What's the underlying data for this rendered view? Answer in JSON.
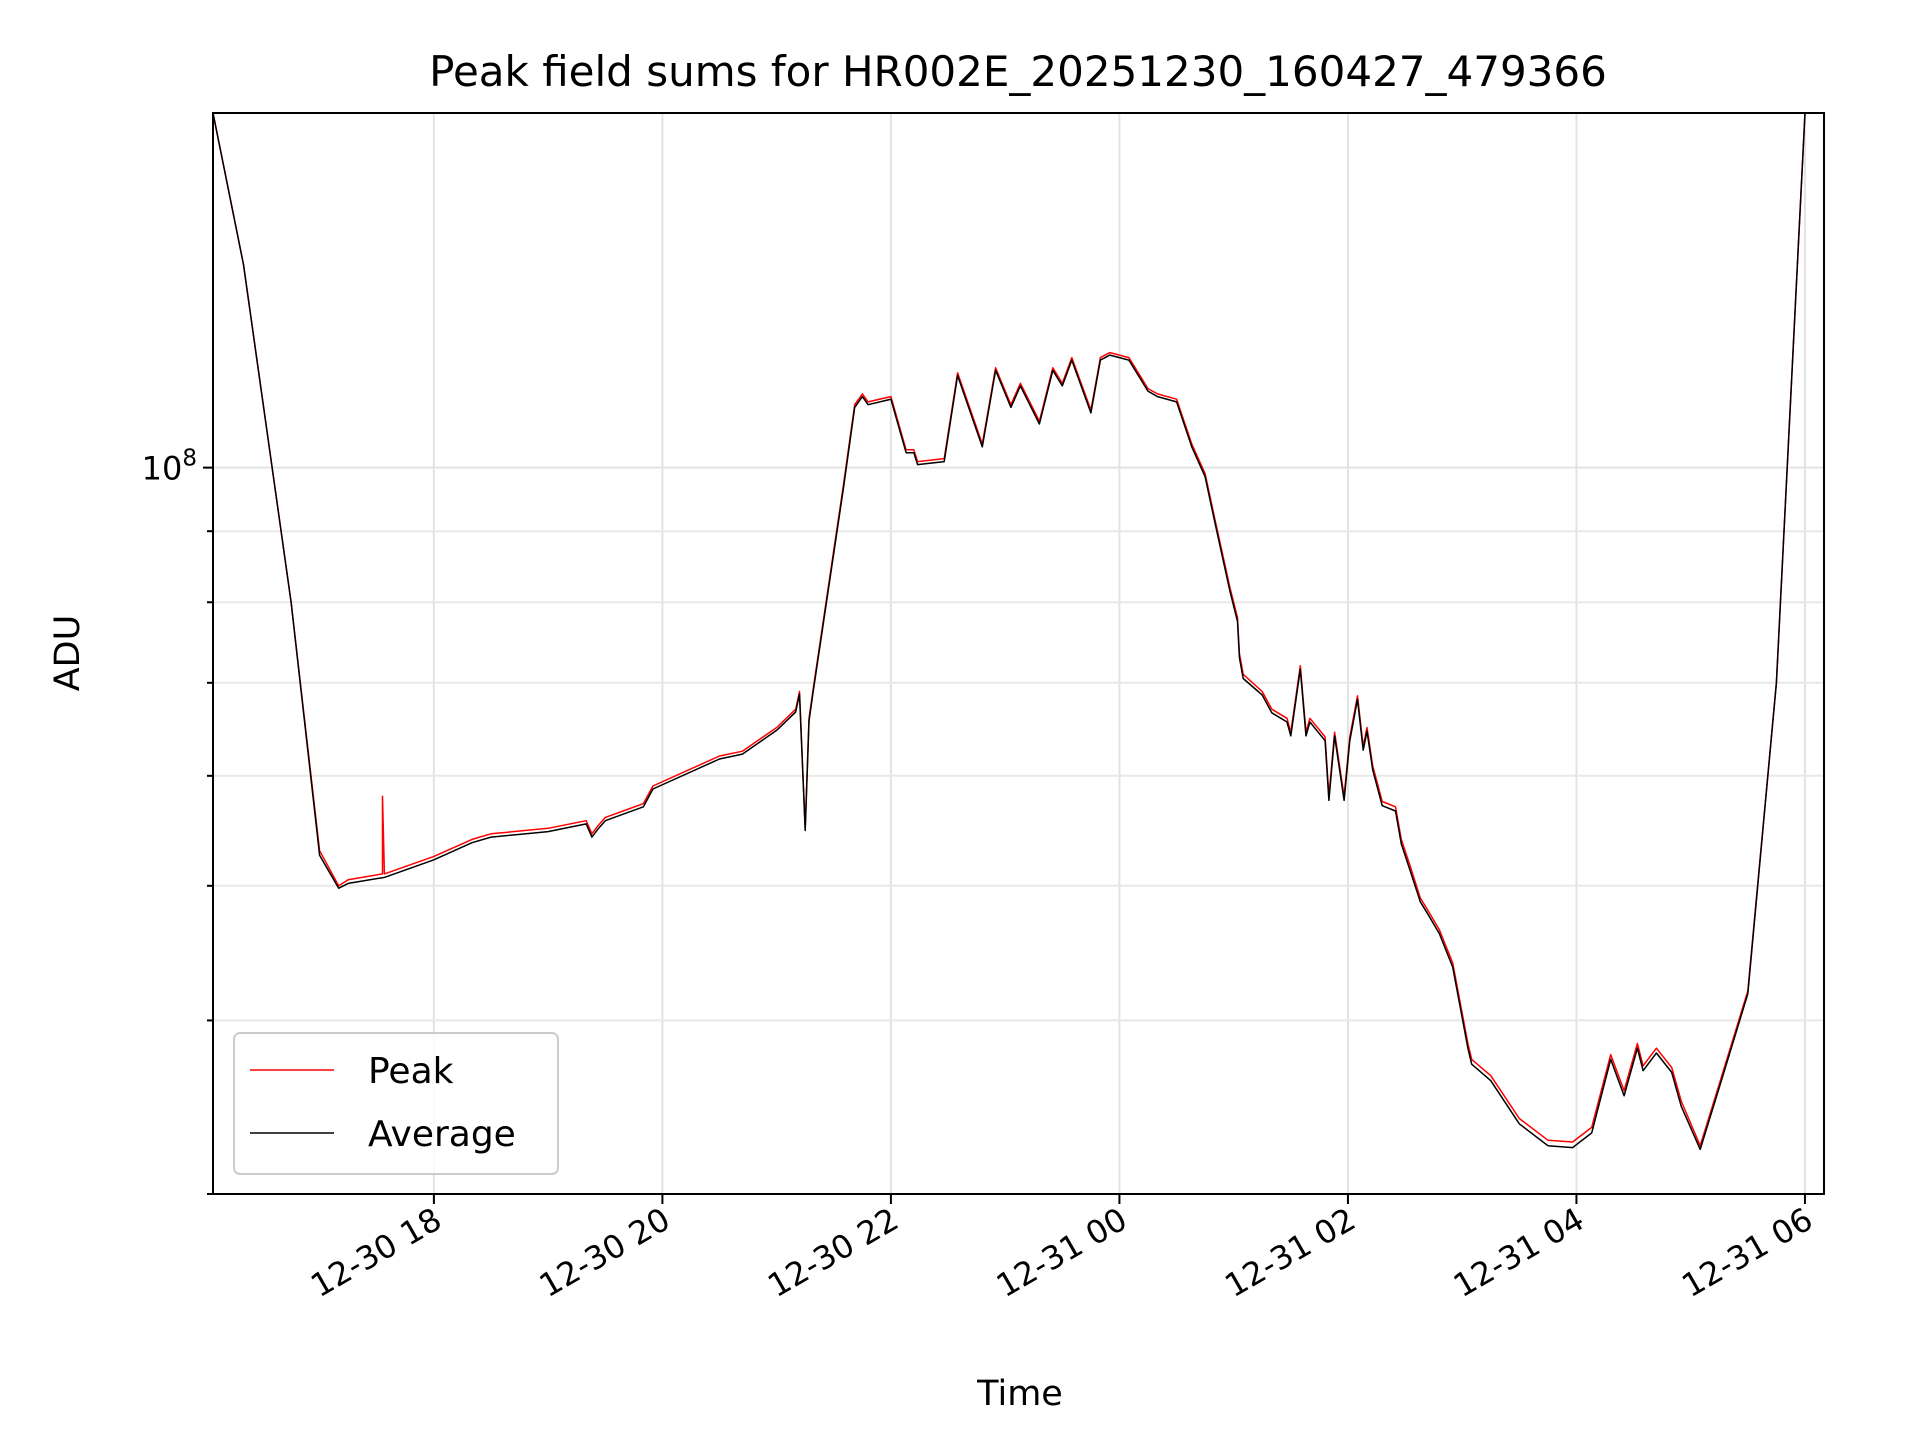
{
  "chart_data": {
    "type": "line",
    "title": "Peak field sums for HR002E_20251230_160427_479366",
    "xlabel": "Time",
    "ylabel": "ADU",
    "y_scale": "log",
    "ylim": [
      30000000,
      180000000
    ],
    "xlim": [
      "2025-12-30 16:04",
      "2025-12-31 06:10"
    ],
    "x_ticks": [
      {
        "value": "2025-12-30 18:00",
        "label": "12-30 18"
      },
      {
        "value": "2025-12-30 20:00",
        "label": "12-30 20"
      },
      {
        "value": "2025-12-30 22:00",
        "label": "12-30 22"
      },
      {
        "value": "2025-12-31 00:00",
        "label": "12-31 00"
      },
      {
        "value": "2025-12-31 02:00",
        "label": "12-31 02"
      },
      {
        "value": "2025-12-31 04:00",
        "label": "12-31 04"
      },
      {
        "value": "2025-12-31 06:00",
        "label": "12-31 06"
      }
    ],
    "y_ticks": [
      {
        "value": 100000000,
        "label_base": "10",
        "label_exp": "8"
      }
    ],
    "y_minor_ticks": [
      30000000,
      40000000,
      50000000,
      60000000,
      70000000,
      80000000,
      90000000,
      200000000
    ],
    "grid": true,
    "legend_position": "lower-left",
    "series": [
      {
        "name": "Peak",
        "color": "#ff0000",
        "x": [
          "2025-12-30 16:04",
          "2025-12-30 16:20",
          "2025-12-30 16:45",
          "2025-12-30 17:00",
          "2025-12-30 17:10",
          "2025-12-30 17:15",
          "2025-12-30 17:33",
          "2025-12-30 17:33",
          "2025-12-30 17:34",
          "2025-12-30 18:00",
          "2025-12-30 18:20",
          "2025-12-30 18:30",
          "2025-12-30 19:00",
          "2025-12-30 19:20",
          "2025-12-30 19:23",
          "2025-12-30 19:26",
          "2025-12-30 19:30",
          "2025-12-30 19:50",
          "2025-12-30 19:55",
          "2025-12-30 20:30",
          "2025-12-30 20:42",
          "2025-12-30 21:00",
          "2025-12-30 21:10",
          "2025-12-30 21:12",
          "2025-12-30 21:15",
          "2025-12-30 21:17",
          "2025-12-30 21:19",
          "2025-12-30 21:35",
          "2025-12-30 21:41",
          "2025-12-30 21:45",
          "2025-12-30 21:48",
          "2025-12-30 22:00",
          "2025-12-30 22:08",
          "2025-12-30 22:12",
          "2025-12-30 22:14",
          "2025-12-30 22:28",
          "2025-12-30 22:35",
          "2025-12-30 22:48",
          "2025-12-30 22:55",
          "2025-12-30 23:03",
          "2025-12-30 23:08",
          "2025-12-30 23:18",
          "2025-12-30 23:25",
          "2025-12-30 23:30",
          "2025-12-30 23:35",
          "2025-12-30 23:45",
          "2025-12-30 23:50",
          "2025-12-30 23:55",
          "2025-12-31 00:05",
          "2025-12-31 00:15",
          "2025-12-31 00:20",
          "2025-12-31 00:30",
          "2025-12-31 00:38",
          "2025-12-31 00:45",
          "2025-12-31 00:50",
          "2025-12-31 00:58",
          "2025-12-31 01:02",
          "2025-12-31 01:03",
          "2025-12-31 01:05",
          "2025-12-31 01:15",
          "2025-12-31 01:20",
          "2025-12-31 01:28",
          "2025-12-31 01:30",
          "2025-12-31 01:35",
          "2025-12-31 01:38",
          "2025-12-31 01:40",
          "2025-12-31 01:48",
          "2025-12-31 01:50",
          "2025-12-31 01:53",
          "2025-12-31 01:58",
          "2025-12-31 02:01",
          "2025-12-31 02:05",
          "2025-12-31 02:08",
          "2025-12-31 02:10",
          "2025-12-31 02:13",
          "2025-12-31 02:18",
          "2025-12-31 02:25",
          "2025-12-31 02:28",
          "2025-12-31 02:33",
          "2025-12-31 02:38",
          "2025-12-31 02:42",
          "2025-12-31 02:48",
          "2025-12-31 02:55",
          "2025-12-31 03:03",
          "2025-12-31 03:05",
          "2025-12-31 03:15",
          "2025-12-31 03:30",
          "2025-12-31 03:45",
          "2025-12-31 03:58",
          "2025-12-31 04:08",
          "2025-12-31 04:18",
          "2025-12-31 04:25",
          "2025-12-31 04:32",
          "2025-12-31 04:35",
          "2025-12-31 04:42",
          "2025-12-31 04:50",
          "2025-12-31 04:55",
          "2025-12-31 05:05",
          "2025-12-31 05:15",
          "2025-12-31 05:30",
          "2025-12-31 05:45",
          "2025-12-31 06:00"
        ],
        "y": [
          180000000,
          140000000,
          80000000,
          53000000,
          50000000,
          50500000,
          51000000,
          58000000,
          51000000,
          52500000,
          54000000,
          54500000,
          55000000,
          55700000,
          54500000,
          55200000,
          56000000,
          57300000,
          59000000,
          62000000,
          62500000,
          65000000,
          67000000,
          69000000,
          55000000,
          66000000,
          69000000,
          97000000,
          111000000,
          113000000,
          111500000,
          112500000,
          103000000,
          103000000,
          101000000,
          101500000,
          117000000,
          104000000,
          118000000,
          111000000,
          115000000,
          108000000,
          118000000,
          115000000,
          120000000,
          110000000,
          120000000,
          121000000,
          120000000,
          114000000,
          113000000,
          112000000,
          104000000,
          99000000,
          92000000,
          82000000,
          78000000,
          73500000,
          71000000,
          69000000,
          67000000,
          66000000,
          64500000,
          72000000,
          64500000,
          66000000,
          64000000,
          58000000,
          64500000,
          58000000,
          64000000,
          68500000,
          63000000,
          65000000,
          61000000,
          57500000,
          57000000,
          54000000,
          51500000,
          49000000,
          48000000,
          46500000,
          44000000,
          38500000,
          37500000,
          36500000,
          34000000,
          32800000,
          32700000,
          33500000,
          37800000,
          35600000,
          38500000,
          37100000,
          38200000,
          37000000,
          35000000,
          32500000,
          36000000,
          42000000,
          70000000,
          180000000
        ]
      },
      {
        "name": "Average",
        "color": "#000000",
        "x": [
          "2025-12-30 16:04",
          "2025-12-30 16:20",
          "2025-12-30 16:45",
          "2025-12-30 17:00",
          "2025-12-30 17:10",
          "2025-12-30 17:15",
          "2025-12-30 17:34",
          "2025-12-30 18:00",
          "2025-12-30 18:20",
          "2025-12-30 18:30",
          "2025-12-30 19:00",
          "2025-12-30 19:20",
          "2025-12-30 19:23",
          "2025-12-30 19:26",
          "2025-12-30 19:30",
          "2025-12-30 19:50",
          "2025-12-30 19:55",
          "2025-12-30 20:30",
          "2025-12-30 20:42",
          "2025-12-30 21:00",
          "2025-12-30 21:10",
          "2025-12-30 21:12",
          "2025-12-30 21:15",
          "2025-12-30 21:17",
          "2025-12-30 21:19",
          "2025-12-30 21:35",
          "2025-12-30 21:41",
          "2025-12-30 21:45",
          "2025-12-30 21:48",
          "2025-12-30 22:00",
          "2025-12-30 22:08",
          "2025-12-30 22:12",
          "2025-12-30 22:14",
          "2025-12-30 22:28",
          "2025-12-30 22:35",
          "2025-12-30 22:48",
          "2025-12-30 22:55",
          "2025-12-30 23:03",
          "2025-12-30 23:08",
          "2025-12-30 23:18",
          "2025-12-30 23:25",
          "2025-12-30 23:30",
          "2025-12-30 23:35",
          "2025-12-30 23:45",
          "2025-12-30 23:50",
          "2025-12-30 23:55",
          "2025-12-31 00:05",
          "2025-12-31 00:15",
          "2025-12-31 00:20",
          "2025-12-31 00:30",
          "2025-12-31 00:38",
          "2025-12-31 00:45",
          "2025-12-31 00:50",
          "2025-12-31 00:58",
          "2025-12-31 01:02",
          "2025-12-31 01:03",
          "2025-12-31 01:05",
          "2025-12-31 01:15",
          "2025-12-31 01:20",
          "2025-12-31 01:28",
          "2025-12-31 01:30",
          "2025-12-31 01:35",
          "2025-12-31 01:38",
          "2025-12-31 01:40",
          "2025-12-31 01:48",
          "2025-12-31 01:50",
          "2025-12-31 01:53",
          "2025-12-31 01:58",
          "2025-12-31 02:01",
          "2025-12-31 02:05",
          "2025-12-31 02:08",
          "2025-12-31 02:10",
          "2025-12-31 02:13",
          "2025-12-31 02:18",
          "2025-12-31 02:25",
          "2025-12-31 02:28",
          "2025-12-31 02:33",
          "2025-12-31 02:38",
          "2025-12-31 02:42",
          "2025-12-31 02:48",
          "2025-12-31 02:55",
          "2025-12-31 03:03",
          "2025-12-31 03:05",
          "2025-12-31 03:15",
          "2025-12-31 03:30",
          "2025-12-31 03:45",
          "2025-12-31 03:58",
          "2025-12-31 04:08",
          "2025-12-31 04:18",
          "2025-12-31 04:25",
          "2025-12-31 04:32",
          "2025-12-31 04:35",
          "2025-12-31 04:42",
          "2025-12-31 04:50",
          "2025-12-31 04:55",
          "2025-12-31 05:05",
          "2025-12-31 05:15",
          "2025-12-31 05:30",
          "2025-12-31 05:45",
          "2025-12-31 06:00"
        ],
        "y": [
          180000000,
          140000000,
          80000000,
          52600000,
          49800000,
          50200000,
          50700000,
          52200000,
          53700000,
          54200000,
          54700000,
          55400000,
          54200000,
          54900000,
          55700000,
          57000000,
          58700000,
          61700000,
          62200000,
          64700000,
          66700000,
          68700000,
          54800000,
          65700000,
          68700000,
          96500000,
          110500000,
          112500000,
          111000000,
          112000000,
          102500000,
          102500000,
          100500000,
          101000000,
          116500000,
          103500000,
          117500000,
          110500000,
          114500000,
          107500000,
          117500000,
          114500000,
          119500000,
          109500000,
          119500000,
          120500000,
          119500000,
          113500000,
          112500000,
          111500000,
          103500000,
          98500000,
          91500000,
          81500000,
          77500000,
          73000000,
          70500000,
          68600000,
          66600000,
          65600000,
          64100000,
          71600000,
          64100000,
          65600000,
          63600000,
          57600000,
          64100000,
          57600000,
          63600000,
          68100000,
          62600000,
          64600000,
          60600000,
          57100000,
          56600000,
          53600000,
          51100000,
          48700000,
          47700000,
          46200000,
          43700000,
          38200000,
          37200000,
          36200000,
          33700000,
          32500000,
          32400000,
          33200000,
          37500000,
          35300000,
          38200000,
          36800000,
          37900000,
          36700000,
          34700000,
          32300000,
          35800000,
          41800000,
          70000000,
          180000000
        ]
      }
    ]
  },
  "legend": {
    "items": [
      {
        "label": "Peak",
        "color": "#ff0000"
      },
      {
        "label": "Average",
        "color": "#000000"
      }
    ]
  }
}
